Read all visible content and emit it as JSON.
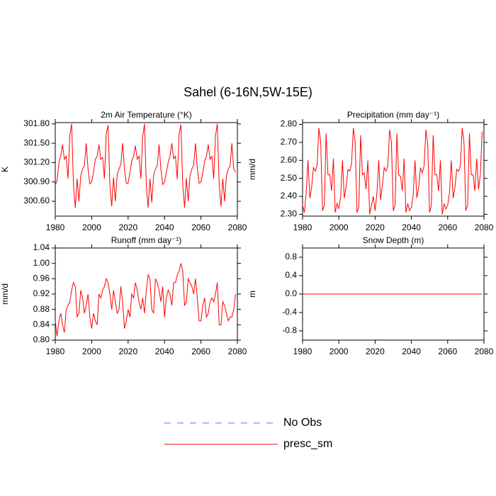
{
  "title": "Sahel (6-16N,5W-15E)",
  "legend": [
    {
      "name": "No Obs",
      "color": "#6a6aff",
      "dashed": true
    },
    {
      "name": "presc_sm",
      "color": "#ff0000",
      "dashed": false
    }
  ],
  "chart_data": [
    {
      "type": "line",
      "title": "2m Air Temperature (°K)",
      "y_label": "K",
      "color": "#ff0000",
      "xlim": [
        1980,
        2080
      ],
      "xticks": [
        1980,
        2000,
        2020,
        2040,
        2060,
        2080
      ],
      "ylim": [
        300.37,
        301.82
      ],
      "yticks": [
        {
          "value": 300.6,
          "label": "300.60"
        },
        {
          "value": 300.9,
          "label": "300.90"
        },
        {
          "value": 301.2,
          "label": "301.20"
        },
        {
          "value": 301.5,
          "label": "301.50"
        },
        {
          "value": 301.8,
          "label": "301.80"
        }
      ],
      "x": [
        1980,
        1981,
        1982,
        1983,
        1984,
        1985,
        1986,
        1987,
        1988,
        1989,
        1990,
        1991,
        1992,
        1993,
        1994,
        1995,
        1996,
        1997,
        1998,
        1999,
        2000,
        2001,
        2002,
        2003,
        2004,
        2005,
        2006,
        2007,
        2008,
        2009,
        2010,
        2011,
        2012,
        2013,
        2014,
        2015,
        2016,
        2017,
        2018,
        2019,
        2020,
        2021,
        2022,
        2023,
        2024,
        2025,
        2026,
        2027,
        2028,
        2029,
        2030,
        2031,
        2032,
        2033,
        2034,
        2035,
        2036,
        2037,
        2038,
        2039,
        2040,
        2041,
        2042,
        2043,
        2044,
        2045,
        2046,
        2047,
        2048,
        2049,
        2050,
        2051,
        2052,
        2053,
        2054,
        2055,
        2056,
        2057,
        2058,
        2059,
        2060,
        2061,
        2062,
        2063,
        2064,
        2065,
        2066,
        2067,
        2068,
        2069,
        2070,
        2071,
        2072,
        2073,
        2074,
        2075,
        2076,
        2077,
        2078,
        2079
      ],
      "values": [
        300.85,
        300.92,
        301.2,
        301.3,
        301.48,
        301.25,
        301.3,
        300.95,
        301.62,
        301.8,
        300.85,
        300.5,
        300.95,
        300.6,
        301.0,
        301.1,
        301.15,
        301.5,
        301.1,
        300.87,
        300.9,
        301.05,
        301.25,
        301.3,
        301.48,
        301.25,
        301.28,
        300.95,
        301.65,
        301.78,
        300.85,
        300.52,
        300.97,
        300.6,
        301.02,
        301.1,
        301.17,
        301.5,
        301.1,
        300.88,
        300.88,
        301.05,
        301.22,
        301.3,
        301.46,
        301.25,
        301.3,
        300.95,
        301.6,
        301.8,
        300.85,
        300.5,
        300.95,
        300.58,
        301.0,
        301.1,
        301.15,
        301.48,
        301.1,
        300.86,
        300.9,
        301.05,
        301.2,
        301.3,
        301.5,
        301.26,
        301.3,
        300.94,
        301.64,
        301.79,
        300.86,
        300.5,
        300.96,
        300.6,
        301.0,
        301.1,
        301.16,
        301.5,
        301.12,
        300.88,
        300.9,
        301.04,
        301.22,
        301.3,
        301.48,
        301.25,
        301.3,
        300.95,
        301.62,
        301.8,
        300.85,
        300.52,
        300.95,
        300.6,
        301.0,
        301.1,
        301.15,
        301.5,
        301.1,
        301.05
      ]
    },
    {
      "type": "line",
      "title": "Precipitation (mm day⁻¹)",
      "y_label": "mm/d",
      "color": "#ff0000",
      "xlim": [
        1980,
        2080
      ],
      "xticks": [
        1980,
        2000,
        2020,
        2040,
        2060,
        2080
      ],
      "ylim": [
        2.29,
        2.81
      ],
      "yticks": [
        {
          "value": 2.3,
          "label": "2.30"
        },
        {
          "value": 2.4,
          "label": "2.40"
        },
        {
          "value": 2.5,
          "label": "2.50"
        },
        {
          "value": 2.6,
          "label": "2.60"
        },
        {
          "value": 2.7,
          "label": "2.70"
        },
        {
          "value": 2.8,
          "label": "2.80"
        }
      ],
      "x": [
        1980,
        1981,
        1982,
        1983,
        1984,
        1985,
        1986,
        1987,
        1988,
        1989,
        1990,
        1991,
        1992,
        1993,
        1994,
        1995,
        1996,
        1997,
        1998,
        1999,
        2000,
        2001,
        2002,
        2003,
        2004,
        2005,
        2006,
        2007,
        2008,
        2009,
        2010,
        2011,
        2012,
        2013,
        2014,
        2015,
        2016,
        2017,
        2018,
        2019,
        2020,
        2021,
        2022,
        2023,
        2024,
        2025,
        2026,
        2027,
        2028,
        2029,
        2030,
        2031,
        2032,
        2033,
        2034,
        2035,
        2036,
        2037,
        2038,
        2039,
        2040,
        2041,
        2042,
        2043,
        2044,
        2045,
        2046,
        2047,
        2048,
        2049,
        2050,
        2051,
        2052,
        2053,
        2054,
        2055,
        2056,
        2057,
        2058,
        2059,
        2060,
        2061,
        2062,
        2063,
        2064,
        2065,
        2066,
        2067,
        2068,
        2069,
        2070,
        2071,
        2072,
        2073,
        2074,
        2075,
        2076,
        2077,
        2078,
        2079
      ],
      "values": [
        2.35,
        2.31,
        2.42,
        2.6,
        2.39,
        2.45,
        2.56,
        2.54,
        2.57,
        2.78,
        2.7,
        2.32,
        2.35,
        2.75,
        2.52,
        2.52,
        2.43,
        2.61,
        2.31,
        2.36,
        2.33,
        2.4,
        2.6,
        2.39,
        2.45,
        2.55,
        2.54,
        2.58,
        2.78,
        2.7,
        2.31,
        2.34,
        2.74,
        2.52,
        2.53,
        2.44,
        2.6,
        2.3,
        2.35,
        2.4,
        2.32,
        2.42,
        2.6,
        2.38,
        2.46,
        2.56,
        2.54,
        2.57,
        2.77,
        2.7,
        2.32,
        2.35,
        2.75,
        2.52,
        2.51,
        2.43,
        2.61,
        2.31,
        2.36,
        2.32,
        2.34,
        2.41,
        2.6,
        2.39,
        2.45,
        2.56,
        2.53,
        2.57,
        2.77,
        2.69,
        2.31,
        2.35,
        2.74,
        2.52,
        2.52,
        2.43,
        2.6,
        2.3,
        2.36,
        2.33,
        2.35,
        2.42,
        2.6,
        2.39,
        2.45,
        2.55,
        2.54,
        2.57,
        2.78,
        2.7,
        2.32,
        2.35,
        2.75,
        2.52,
        2.52,
        2.43,
        2.61,
        2.44,
        2.52,
        2.76
      ]
    },
    {
      "type": "line",
      "title": "Runoff (mm day⁻¹)",
      "y_label": "mm/d",
      "color": "#ff0000",
      "xlim": [
        1980,
        2080
      ],
      "xticks": [
        1980,
        2000,
        2020,
        2040,
        2060,
        2080
      ],
      "ylim": [
        0.8,
        1.04
      ],
      "yticks": [
        {
          "value": 0.8,
          "label": "0.80"
        },
        {
          "value": 0.84,
          "label": "0.84"
        },
        0.88,
        0.92,
        0.96,
        {
          "value": 1.0,
          "label": "1.00"
        },
        1.04
      ],
      "x": [
        1980,
        1981,
        1982,
        1983,
        1984,
        1985,
        1986,
        1987,
        1988,
        1989,
        1990,
        1991,
        1992,
        1993,
        1994,
        1995,
        1996,
        1997,
        1998,
        1999,
        2000,
        2001,
        2002,
        2003,
        2004,
        2005,
        2006,
        2007,
        2008,
        2009,
        2010,
        2011,
        2012,
        2013,
        2014,
        2015,
        2016,
        2017,
        2018,
        2019,
        2020,
        2021,
        2022,
        2023,
        2024,
        2025,
        2026,
        2027,
        2028,
        2029,
        2030,
        2031,
        2032,
        2033,
        2034,
        2035,
        2036,
        2037,
        2038,
        2039,
        2040,
        2041,
        2042,
        2043,
        2044,
        2045,
        2046,
        2047,
        2048,
        2049,
        2050,
        2051,
        2052,
        2053,
        2054,
        2055,
        2056,
        2057,
        2058,
        2059,
        2060,
        2061,
        2062,
        2063,
        2064,
        2065,
        2066,
        2067,
        2068,
        2069,
        2070,
        2071,
        2072,
        2073,
        2074,
        2075,
        2076,
        2077,
        2078,
        2079
      ],
      "values": [
        0.85,
        0.81,
        0.85,
        0.87,
        0.84,
        0.82,
        0.88,
        0.89,
        0.9,
        0.93,
        0.95,
        0.94,
        0.86,
        0.87,
        0.93,
        0.91,
        0.87,
        0.89,
        0.92,
        0.86,
        0.83,
        0.87,
        0.85,
        0.84,
        0.92,
        0.91,
        0.93,
        0.94,
        0.96,
        0.95,
        0.92,
        0.88,
        0.93,
        0.9,
        0.87,
        0.88,
        0.94,
        0.9,
        0.83,
        0.85,
        0.88,
        0.86,
        0.92,
        0.91,
        0.95,
        0.93,
        0.9,
        0.88,
        0.91,
        0.87,
        0.93,
        0.97,
        0.96,
        0.88,
        0.87,
        0.96,
        0.95,
        0.93,
        0.9,
        0.94,
        0.86,
        0.91,
        0.93,
        0.92,
        0.89,
        0.95,
        0.95,
        0.97,
        0.98,
        1.0,
        0.98,
        0.89,
        0.9,
        0.96,
        0.95,
        0.94,
        0.92,
        0.96,
        0.91,
        0.85,
        0.85,
        0.89,
        0.91,
        0.86,
        0.87,
        0.9,
        0.91,
        0.9,
        0.92,
        0.95,
        0.84,
        0.84,
        0.9,
        0.89,
        0.87,
        0.85,
        0.86,
        0.86,
        0.88,
        0.92
      ]
    },
    {
      "type": "line",
      "title": "Snow Depth (m)",
      "y_label": "m",
      "color": "#ff0000",
      "xlim": [
        1980,
        2080
      ],
      "xticks": [
        1980,
        2000,
        2020,
        2040,
        2060,
        2080
      ],
      "ylim": [
        -1.0,
        1.0
      ],
      "yticks": [
        {
          "value": -0.8,
          "label": "-0.8"
        },
        {
          "value": -0.4,
          "label": "-0.4"
        },
        {
          "value": 0,
          "label": "0.0"
        },
        0.4,
        0.8
      ],
      "x": [
        1980,
        1981,
        1982,
        1983,
        1984,
        1985,
        1986,
        1987,
        1988,
        1989,
        1990,
        1991,
        1992,
        1993,
        1994,
        1995,
        1996,
        1997,
        1998,
        1999,
        2000,
        2001,
        2002,
        2003,
        2004,
        2005,
        2006,
        2007,
        2008,
        2009,
        2010,
        2011,
        2012,
        2013,
        2014,
        2015,
        2016,
        2017,
        2018,
        2019,
        2020,
        2021,
        2022,
        2023,
        2024,
        2025,
        2026,
        2027,
        2028,
        2029,
        2030,
        2031,
        2032,
        2033,
        2034,
        2035,
        2036,
        2037,
        2038,
        2039,
        2040,
        2041,
        2042,
        2043,
        2044,
        2045,
        2046,
        2047,
        2048,
        2049,
        2050,
        2051,
        2052,
        2053,
        2054,
        2055,
        2056,
        2057,
        2058,
        2059,
        2060,
        2061,
        2062,
        2063,
        2064,
        2065,
        2066,
        2067,
        2068,
        2069,
        2070,
        2071,
        2072,
        2073,
        2074,
        2075,
        2076,
        2077,
        2078,
        2079
      ],
      "values": [
        0,
        0,
        0,
        0,
        0,
        0,
        0,
        0,
        0,
        0,
        0,
        0,
        0,
        0,
        0,
        0,
        0,
        0,
        0,
        0,
        0,
        0,
        0,
        0,
        0,
        0,
        0,
        0,
        0,
        0,
        0,
        0,
        0,
        0,
        0,
        0,
        0,
        0,
        0,
        0,
        0,
        0,
        0,
        0,
        0,
        0,
        0,
        0,
        0,
        0,
        0,
        0,
        0,
        0,
        0,
        0,
        0,
        0,
        0,
        0,
        0,
        0,
        0,
        0,
        0,
        0,
        0,
        0,
        0,
        0,
        0,
        0,
        0,
        0,
        0,
        0,
        0,
        0,
        0,
        0,
        0,
        0,
        0,
        0,
        0,
        0,
        0,
        0,
        0,
        0,
        0,
        0,
        0,
        0,
        0,
        0,
        0,
        0,
        0,
        0
      ]
    }
  ]
}
